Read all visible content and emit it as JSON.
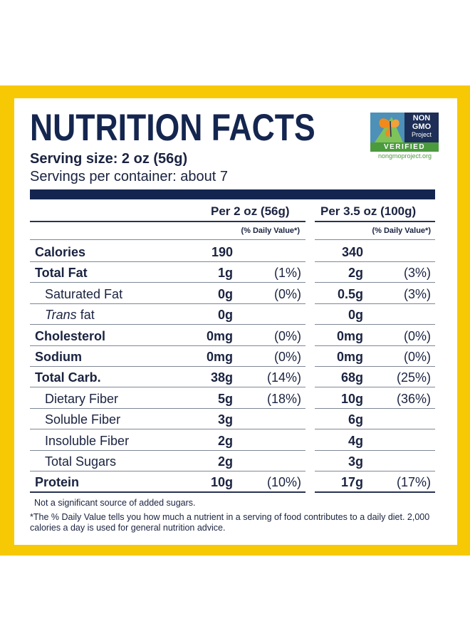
{
  "title": "NUTRITION FACTS",
  "serving_size": "Serving size: 2 oz (56g)",
  "servings_per_container": "Servings per container: about 7",
  "badge": {
    "line1": "NON",
    "line2": "GMO",
    "line3": "Project",
    "verified": "VERIFIED",
    "url": "nongmoproject.org"
  },
  "columns": {
    "col1_header": "Per 2 oz (56g)",
    "col2_header": "Per 3.5 oz (100g)",
    "dv_note": "(% Daily Value*)"
  },
  "rows": [
    {
      "name": "Calories",
      "amount1": "190",
      "pct1": "",
      "amount2": "340",
      "pct2": ""
    },
    {
      "name": "Total Fat",
      "amount1": "1g",
      "pct1": "(1%)",
      "amount2": "2g",
      "pct2": "(3%)"
    },
    {
      "name": "Saturated Fat",
      "amount1": "0g",
      "pct1": "(0%)",
      "amount2": "0.5g",
      "pct2": "(3%)"
    },
    {
      "name_italic": "Trans",
      "name_rest": " fat",
      "amount1": "0g",
      "pct1": "",
      "amount2": "0g",
      "pct2": ""
    },
    {
      "name": "Cholesterol",
      "amount1": "0mg",
      "pct1": "(0%)",
      "amount2": "0mg",
      "pct2": "(0%)"
    },
    {
      "name": "Sodium",
      "amount1": "0mg",
      "pct1": "(0%)",
      "amount2": "0mg",
      "pct2": "(0%)"
    },
    {
      "name": "Total Carb.",
      "amount1": "38g",
      "pct1": "(14%)",
      "amount2": "68g",
      "pct2": "(25%)"
    },
    {
      "name": "Dietary Fiber",
      "amount1": "5g",
      "pct1": "(18%)",
      "amount2": "10g",
      "pct2": "(36%)"
    },
    {
      "name": "Soluble Fiber",
      "amount1": "3g",
      "pct1": "",
      "amount2": "6g",
      "pct2": ""
    },
    {
      "name": "Insoluble Fiber",
      "amount1": "2g",
      "pct1": "",
      "amount2": "4g",
      "pct2": ""
    },
    {
      "name": "Total Sugars",
      "amount1": "2g",
      "pct1": "",
      "amount2": "3g",
      "pct2": ""
    },
    {
      "name": "Protein",
      "amount1": "10g",
      "pct1": "(10%)",
      "amount2": "17g",
      "pct2": "(17%)"
    }
  ],
  "footnote_sugars": "Not a significant source of added sugars.",
  "footnote_dv": "*The % Daily Value tells you how much a nutrient in a serving of food contributes to a daily diet. 2,000 calories a day is used for general nutrition advice.",
  "colors": {
    "navy": "#14264f",
    "frame_yellow": "#f7c905",
    "badge_green": "#4c9a3e",
    "badge_blue": "#4d90b8"
  }
}
